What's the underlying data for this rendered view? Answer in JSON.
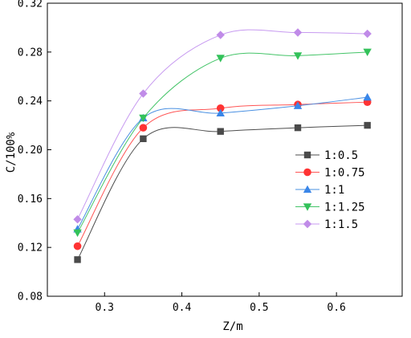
{
  "chart_data": {
    "type": "line",
    "xlabel": "Z/m",
    "ylabel": "C/100%",
    "xlim": [
      0.226,
      0.685
    ],
    "ylim": [
      0.08,
      0.32
    ],
    "x_ticks": [
      0.3,
      0.4,
      0.5,
      0.6
    ],
    "x_tick_labels": [
      "0.3",
      "0.4",
      "0.5",
      "0.6"
    ],
    "y_ticks": [
      0.08,
      0.12,
      0.16,
      0.2,
      0.24,
      0.28,
      0.32
    ],
    "y_tick_labels": [
      "0.08",
      "0.12",
      "0.16",
      "0.20",
      "0.24",
      "0.28",
      "0.32"
    ],
    "grid": false,
    "legend_position": "right",
    "x": [
      0.265,
      0.35,
      0.45,
      0.55,
      0.64
    ],
    "series": [
      {
        "name": "1:0.5",
        "marker": "square",
        "color": "#4a4a4a",
        "line_color": "#4d4d4d",
        "values": [
          0.11,
          0.209,
          0.215,
          0.218,
          0.22
        ]
      },
      {
        "name": "1:0.75",
        "marker": "circle",
        "color": "#ff3333",
        "line_color": "#ff5555",
        "values": [
          0.121,
          0.218,
          0.234,
          0.237,
          0.239
        ]
      },
      {
        "name": "1:1",
        "marker": "triangle-up",
        "color": "#3a86e8",
        "line_color": "#4a90e2",
        "values": [
          0.135,
          0.226,
          0.23,
          0.236,
          0.243
        ]
      },
      {
        "name": "1:1.25",
        "marker": "triangle-down",
        "color": "#33c25a",
        "line_color": "#44c468",
        "values": [
          0.132,
          0.226,
          0.275,
          0.277,
          0.28
        ]
      },
      {
        "name": "1:1.5",
        "marker": "diamond",
        "color": "#c08be8",
        "line_color": "#c79af0",
        "values": [
          0.143,
          0.246,
          0.294,
          0.296,
          0.295
        ]
      }
    ]
  }
}
